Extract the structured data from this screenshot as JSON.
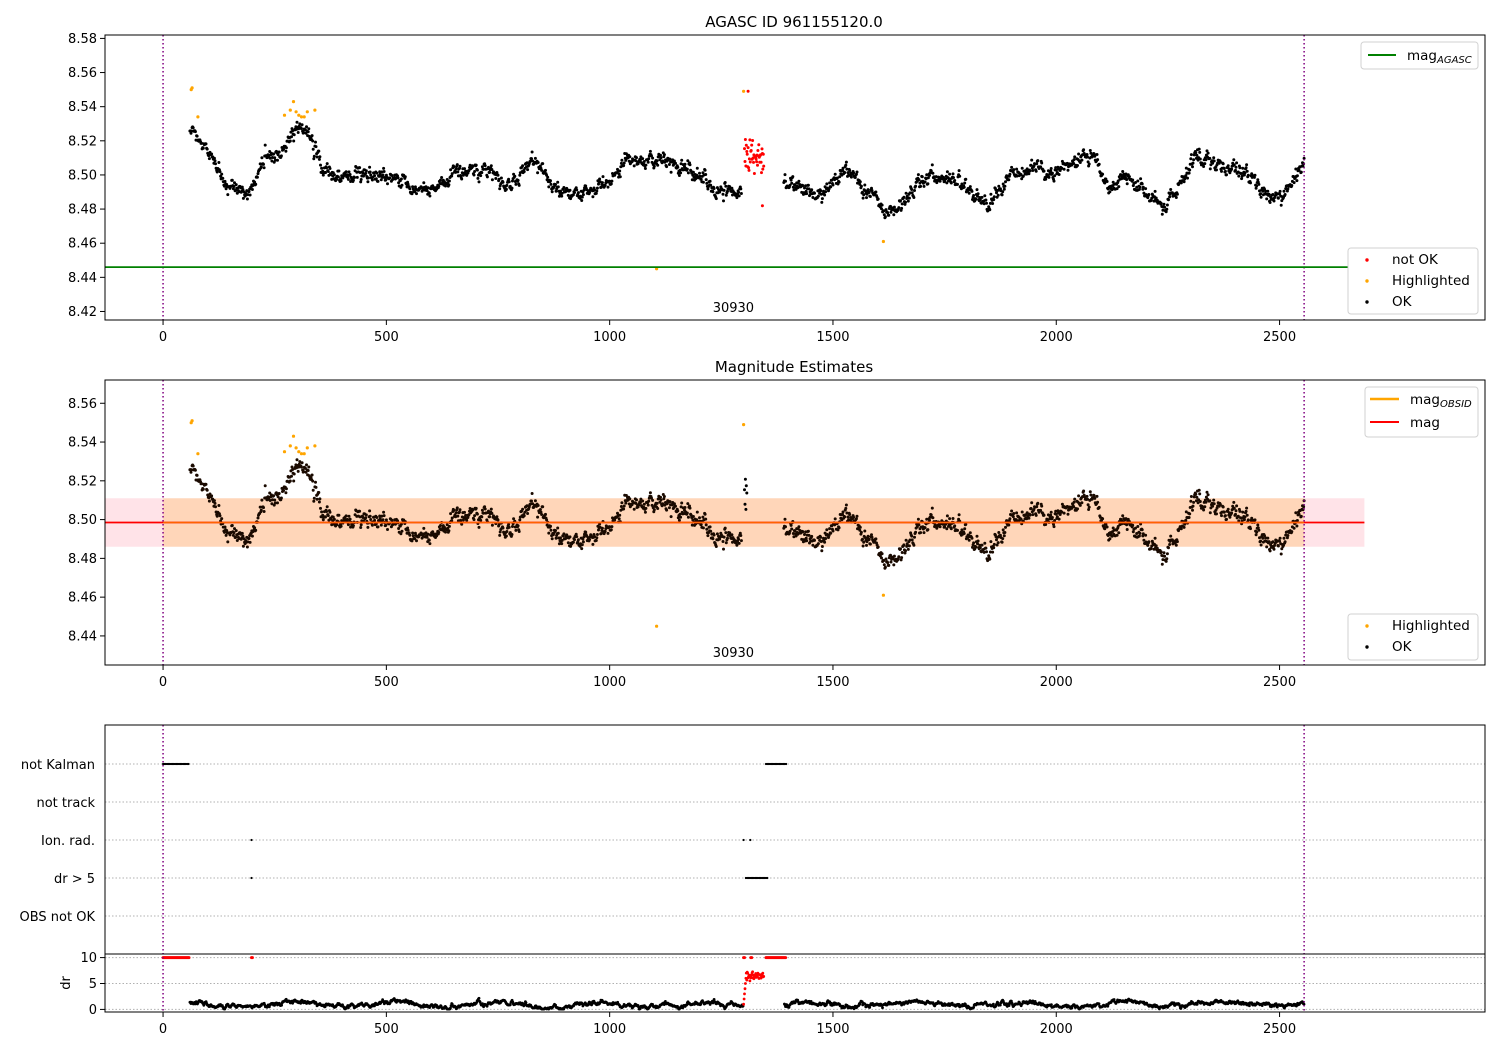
{
  "chart_data": [
    {
      "type": "scatter",
      "title": "AGASC ID 961155120.0",
      "xlabel": "",
      "ylabel": "",
      "xlim": [
        -130,
        2960
      ],
      "ylim": [
        8.415,
        8.582
      ],
      "xticks": [
        0,
        500,
        1000,
        1500,
        2000,
        2500
      ],
      "yticks": [
        8.42,
        8.44,
        8.46,
        8.48,
        8.5,
        8.52,
        8.54,
        8.56,
        8.58
      ],
      "grid": false,
      "obsid_boundaries": [
        0,
        2555
      ],
      "obsid_label": {
        "text": "30930",
        "x": 1277
      },
      "mag_agasc": 8.446,
      "legend_top": {
        "placement": "top-right",
        "entries": [
          {
            "label": "mag",
            "sub": "AGASC",
            "color": "#008000"
          }
        ]
      },
      "legend_bottom": {
        "placement": "lower-right",
        "entries": [
          {
            "label": "not OK",
            "color": "#ff0000"
          },
          {
            "label": "Highlighted",
            "color": "#ffa500"
          },
          {
            "label": "OK",
            "color": "#000000"
          }
        ]
      },
      "series": [
        {
          "name": "OK",
          "color": "#000000",
          "trend": [
            [
              60,
              8.525
            ],
            [
              100,
              8.515
            ],
            [
              140,
              8.492
            ],
            [
              190,
              8.49
            ],
            [
              230,
              8.512
            ],
            [
              260,
              8.51
            ],
            [
              300,
              8.53
            ],
            [
              330,
              8.52
            ],
            [
              360,
              8.502
            ],
            [
              420,
              8.498
            ],
            [
              480,
              8.5
            ],
            [
              540,
              8.495
            ],
            [
              600,
              8.49
            ],
            [
              650,
              8.5
            ],
            [
              720,
              8.502
            ],
            [
              780,
              8.493
            ],
            [
              830,
              8.51
            ],
            [
              880,
              8.49
            ],
            [
              940,
              8.488
            ],
            [
              1000,
              8.497
            ],
            [
              1040,
              8.51
            ],
            [
              1100,
              8.508
            ],
            [
              1150,
              8.506
            ],
            [
              1200,
              8.5
            ],
            [
              1250,
              8.49
            ],
            [
              1295,
              8.49
            ],
            [
              1400,
              8.495
            ],
            [
              1450,
              8.49
            ],
            [
              1480,
              8.487
            ],
            [
              1530,
              8.505
            ],
            [
              1580,
              8.49
            ],
            [
              1620,
              8.477
            ],
            [
              1660,
              8.486
            ],
            [
              1720,
              8.5
            ],
            [
              1780,
              8.496
            ],
            [
              1850,
              8.483
            ],
            [
              1900,
              8.5
            ],
            [
              1960,
              8.505
            ],
            [
              2000,
              8.5
            ],
            [
              2040,
              8.508
            ],
            [
              2080,
              8.512
            ],
            [
              2120,
              8.49
            ],
            [
              2160,
              8.5
            ],
            [
              2200,
              8.49
            ],
            [
              2240,
              8.482
            ],
            [
              2270,
              8.49
            ],
            [
              2310,
              8.51
            ],
            [
              2350,
              8.507
            ],
            [
              2400,
              8.505
            ],
            [
              2440,
              8.5
            ],
            [
              2480,
              8.485
            ],
            [
              2520,
              8.49
            ],
            [
              2555,
              8.51
            ]
          ],
          "gaps": [
            [
              1300,
              1390
            ]
          ]
        },
        {
          "name": "Highlighted",
          "color": "#ffa500",
          "points": [
            [
              63,
              8.55
            ],
            [
              65,
              8.551
            ],
            [
              78,
              8.534
            ],
            [
              272,
              8.535
            ],
            [
              285,
              8.538
            ],
            [
              292,
              8.543
            ],
            [
              298,
              8.537
            ],
            [
              304,
              8.535
            ],
            [
              310,
              8.534
            ],
            [
              316,
              8.534
            ],
            [
              323,
              8.537
            ],
            [
              340,
              8.538
            ],
            [
              1105,
              8.445
            ],
            [
              1300,
              8.549
            ],
            [
              1613,
              8.461
            ]
          ]
        },
        {
          "name": "not OK",
          "color": "#ff0000",
          "range": [
            1302,
            1345
          ],
          "points": [
            [
              1310,
              8.549
            ],
            [
              1342,
              8.482
            ]
          ]
        }
      ]
    },
    {
      "type": "scatter",
      "title": "Magnitude Estimates",
      "xlabel": "",
      "ylabel": "",
      "xlim": [
        -130,
        2960
      ],
      "ylim": [
        8.425,
        8.572
      ],
      "xticks": [
        0,
        500,
        1000,
        1500,
        2000,
        2500
      ],
      "yticks": [
        8.44,
        8.46,
        8.48,
        8.5,
        8.52,
        8.54,
        8.56
      ],
      "grid": false,
      "obsid_boundaries": [
        0,
        2555
      ],
      "obsid_label": {
        "text": "30930",
        "x": 1277
      },
      "mag": 8.4985,
      "mag_band": [
        8.486,
        8.511
      ],
      "band_xrange": [
        -130,
        2690
      ],
      "obsid_band_xrange": [
        0,
        2555
      ],
      "legend_top": {
        "placement": "top-right",
        "entries": [
          {
            "label": "mag",
            "sub": "OBSID",
            "color": "#ffa500"
          },
          {
            "label": "mag",
            "sub": "",
            "color": "#ff0000"
          }
        ]
      },
      "legend_bottom": {
        "placement": "lower-right",
        "entries": [
          {
            "label": "Highlighted",
            "color": "#ffa500"
          },
          {
            "label": "OK",
            "color": "#000000"
          }
        ]
      }
    },
    {
      "type": "scatter",
      "title": "",
      "xlabel": "",
      "ylabel": "dr",
      "xlim": [
        -130,
        2960
      ],
      "xticks": [
        0,
        500,
        1000,
        1500,
        2000,
        2500
      ],
      "flag_rows": [
        "not Kalman",
        "not track",
        "Ion. rad.",
        "dr > 5",
        "OBS not OK"
      ],
      "flags": {
        "not Kalman": [
          [
            0,
            58
          ],
          [
            1350,
            1395
          ]
        ],
        "not track": [],
        "Ion. rad.": [
          [
            198,
            200
          ],
          [
            1300,
            1302
          ],
          [
            1315,
            1317
          ]
        ],
        "dr > 5": [
          [
            198,
            200
          ],
          [
            1305,
            1355
          ]
        ],
        "OBS not OK": []
      },
      "dr_ylim": [
        -0.5,
        10.5
      ],
      "dr_yticks": [
        0,
        5,
        10
      ],
      "dr_red_clipped": [
        [
          0,
          58
        ],
        [
          198,
          200
        ],
        [
          1300,
          1302
        ],
        [
          1316,
          1318
        ],
        [
          1350,
          1395
        ]
      ],
      "dr_red_burst": [
        1300,
        1345
      ]
    }
  ]
}
